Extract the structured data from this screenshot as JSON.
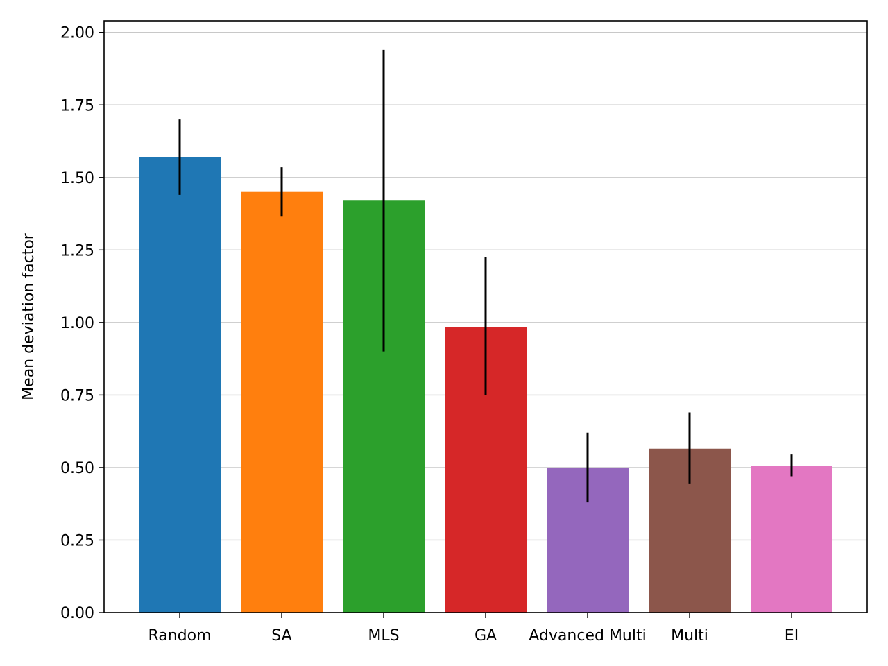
{
  "chart_data": {
    "type": "bar",
    "title": "",
    "xlabel": "",
    "ylabel": "Mean deviation factor",
    "categories": [
      "Random",
      "SA",
      "MLS",
      "GA",
      "Advanced Multi",
      "Multi",
      "EI"
    ],
    "values": [
      1.57,
      1.45,
      1.42,
      0.985,
      0.5,
      0.565,
      0.505
    ],
    "error_low": [
      1.44,
      1.365,
      0.9,
      0.75,
      0.38,
      0.445,
      0.47
    ],
    "error_high": [
      1.7,
      1.535,
      1.94,
      1.225,
      0.62,
      0.69,
      0.545
    ],
    "colors": [
      "#1f77b4",
      "#ff7f0e",
      "#2ca02c",
      "#d62728",
      "#9467bd",
      "#8c564b",
      "#e377c2"
    ],
    "ylim": [
      0,
      2.04
    ],
    "yticks": [
      "0.00",
      "0.25",
      "0.50",
      "0.75",
      "1.00",
      "1.25",
      "1.50",
      "1.75",
      "2.00"
    ],
    "grid": "y"
  }
}
